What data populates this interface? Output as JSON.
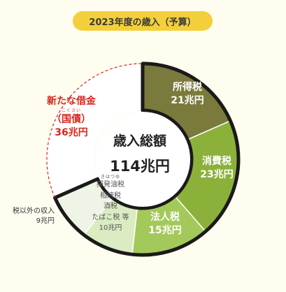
{
  "title": "2023年度の歳入（予算）",
  "center": {
    "line1": "歳入総額",
    "line2": "114兆円"
  },
  "colors": {
    "income_tax": "#7a7a3c",
    "consumption_tax": "#8cb13b",
    "corporate_tax": "#a3c95a",
    "other_taxes": "#dbebc2",
    "non_tax": "#eef4e6",
    "bonds": "#ffffff",
    "bonds_dash": "#d9251d",
    "outline": "#1a1a1a"
  },
  "chart_data": {
    "type": "pie",
    "title": "2023年度の歳入（予算）",
    "total": {
      "label": "歳入総額",
      "value": 114,
      "unit": "兆円"
    },
    "slices": [
      {
        "name": "所得税",
        "value": 21,
        "value_text": "21兆円"
      },
      {
        "name": "消費税",
        "value": 23,
        "value_text": "23兆円"
      },
      {
        "name": "法人税",
        "value": 15,
        "value_text": "15兆円"
      },
      {
        "name": "揮発油税 相続税 酒税 たばこ税 等",
        "value": 10,
        "value_text": "10兆円"
      },
      {
        "name": "税以外の収入",
        "value": 9,
        "value_text": "9兆円"
      },
      {
        "name": "新たな借金（国債）",
        "value": 36,
        "value_text": "36兆円"
      }
    ]
  },
  "labels": {
    "income_tax": {
      "name": "所得税",
      "value": "21兆円"
    },
    "consumption_tax": {
      "name": "消費税",
      "value": "23兆円"
    },
    "corporate_tax": {
      "name": "法人税",
      "value": "15兆円"
    },
    "other_taxes": {
      "ruby": "きはつゆ",
      "lines": [
        "揮発油税",
        "相続税",
        "酒税",
        "たばこ税 等"
      ],
      "value": "10兆円"
    },
    "non_tax": {
      "name": "税以外の収入",
      "value": "9兆円"
    },
    "bonds": {
      "line1": "新たな借金",
      "ruby": "こくさい",
      "line2": "（国債）",
      "value": "36兆円"
    }
  }
}
